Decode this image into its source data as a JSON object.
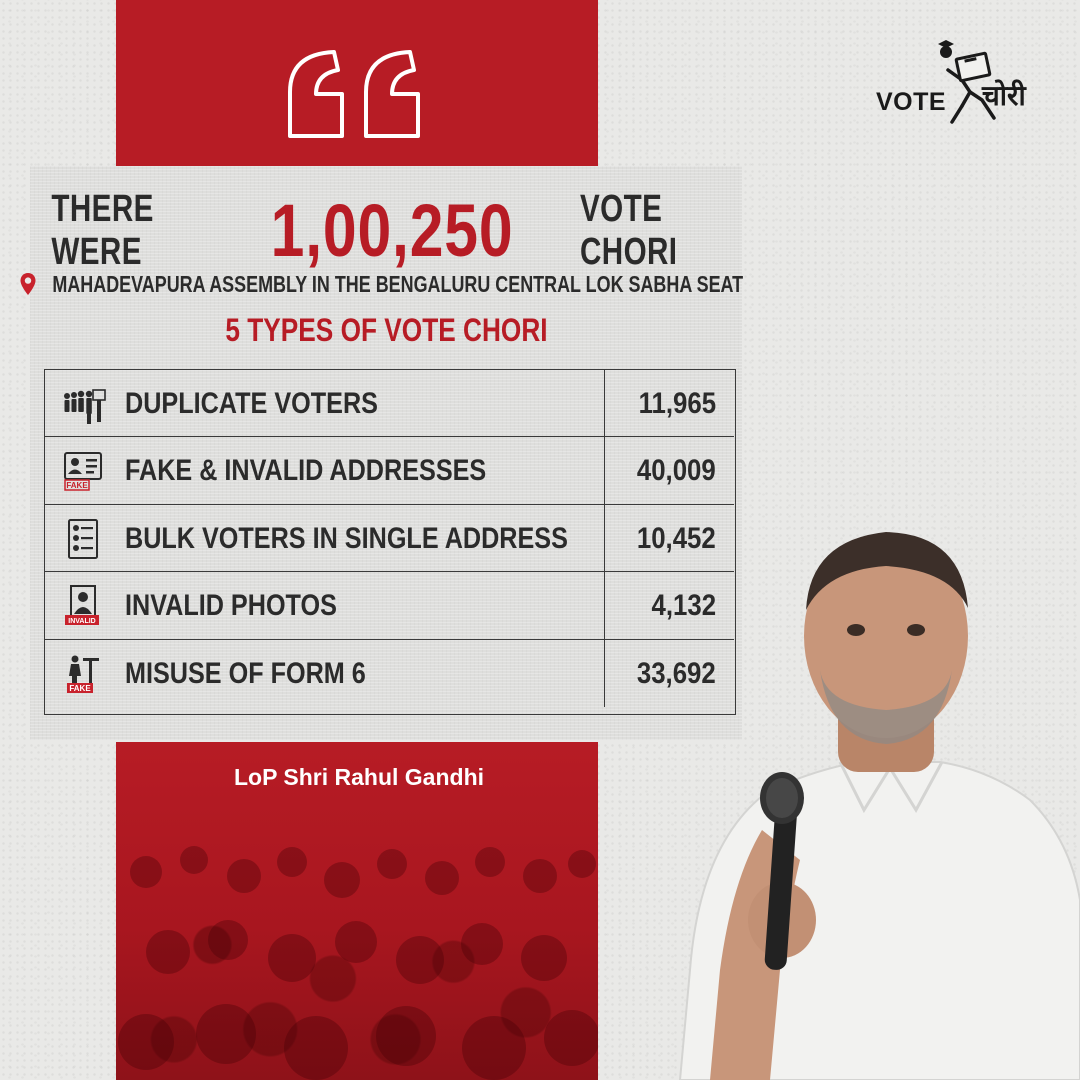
{
  "logo": {
    "vote_text": "VOTE",
    "chori_text": "चोरी"
  },
  "headline": {
    "prefix": "THERE WERE",
    "number": "1,00,250",
    "suffix": "VOTE CHORI"
  },
  "location": {
    "icon": "map-pin-icon",
    "text": "MAHADEVAPURA ASSEMBLY IN THE BENGALURU CENTRAL LOK SABHA SEAT"
  },
  "types_title": "5 TYPES OF VOTE CHORI",
  "table": {
    "rows": [
      {
        "icon": "voter-queue-icon",
        "label": "DUPLICATE VOTERS",
        "value": "11,965"
      },
      {
        "icon": "fake-id-card-icon",
        "label": "FAKE & INVALID ADDRESSES",
        "value": "40,009",
        "icon_badge": "FAKE"
      },
      {
        "icon": "document-list-icon",
        "label": "BULK VOTERS IN SINGLE ADDRESS",
        "value": "10,452"
      },
      {
        "icon": "invalid-photo-icon",
        "label": "INVALID PHOTOS",
        "value": "4,132",
        "icon_badge": "INVALID"
      },
      {
        "icon": "fake-form-icon",
        "label": "MISUSE OF FORM 6",
        "value": "33,692",
        "icon_badge": "FAKE"
      }
    ]
  },
  "caption": "LoP Shri Rahul Gandhi",
  "colors": {
    "accent_red": "#b71c25",
    "text_dark": "#2b2b2b",
    "background": "#e9e9e7"
  }
}
